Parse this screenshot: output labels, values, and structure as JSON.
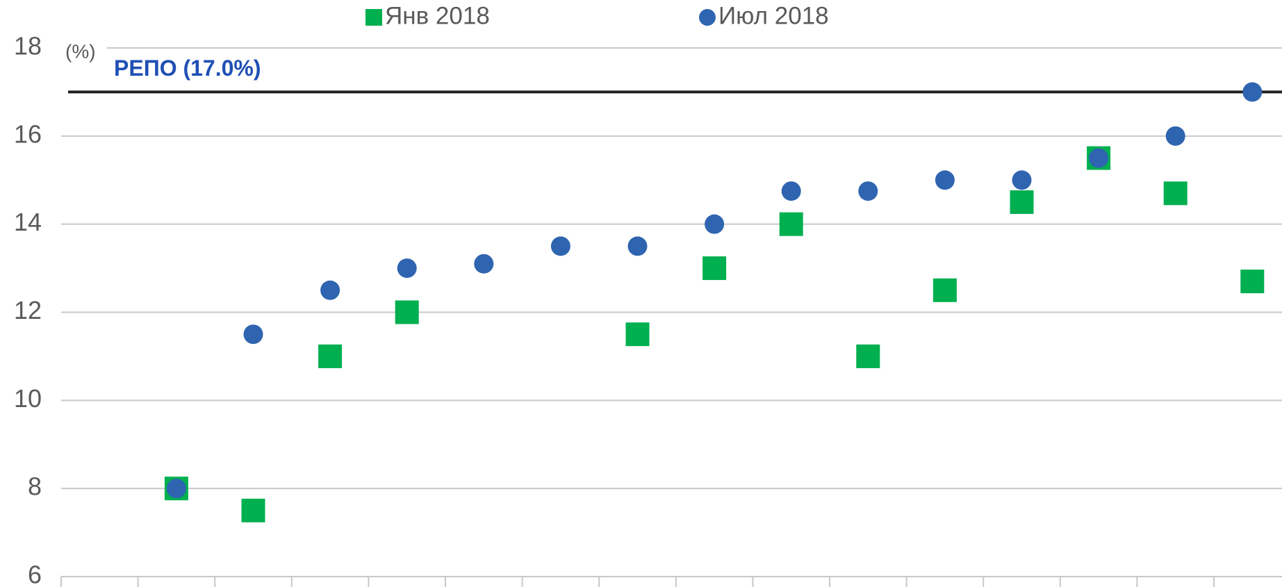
{
  "chart_data": {
    "type": "scatter",
    "y_label": "(%)",
    "categories": [
      null,
      null,
      null,
      null,
      null,
      null,
      null,
      null,
      null,
      null,
      null,
      null,
      null,
      null,
      null
    ],
    "series": [
      {
        "name": "Янв 2018",
        "color": "#00b050",
        "marker": "square",
        "values": [
          8,
          7.5,
          11,
          12,
          null,
          null,
          11.5,
          13,
          14,
          11,
          12.5,
          14.5,
          15.5,
          14.7,
          12.7
        ]
      },
      {
        "name": "Июл 2018",
        "color": "#2e64b0",
        "marker": "circle",
        "values": [
          8,
          11.5,
          12.5,
          13,
          13.1,
          13.5,
          13.5,
          14,
          14.75,
          14.75,
          15,
          15,
          15.5,
          16,
          17
        ]
      }
    ],
    "reference_line": {
      "value": 17,
      "label": "РЕПО (17.0%)",
      "color": "#1f1f1f",
      "label_color": "#1f4fb4"
    },
    "ylim": [
      6,
      18
    ],
    "yticks": [
      6,
      8,
      10,
      12,
      14,
      16,
      18
    ],
    "grid": true
  }
}
